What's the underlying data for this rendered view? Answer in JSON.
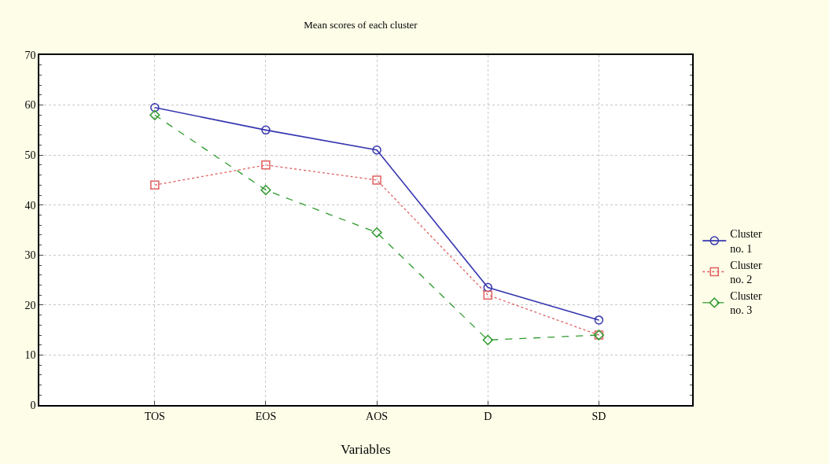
{
  "chart_data": {
    "type": "line",
    "title": "Mean scores of each cluster",
    "xlabel": "Variables",
    "categories": [
      "TOS",
      "EOS",
      "AOS",
      "D",
      "SD"
    ],
    "series": [
      {
        "name": "Cluster no. 1",
        "color": "#3636b0",
        "values": [
          59.5,
          55,
          51,
          23.5,
          17
        ],
        "marker": "circle",
        "line_style": "solid"
      },
      {
        "name": "Cluster no. 2",
        "color": "#e06060",
        "values": [
          44,
          48,
          45,
          22,
          14
        ],
        "marker": "square",
        "line_style": "dotted"
      },
      {
        "name": "Cluster no. 3",
        "color": "#2e9a2e",
        "values": [
          58,
          43,
          34.5,
          13,
          14
        ],
        "marker": "diamond",
        "line_style": "dashed"
      }
    ],
    "ylim": [
      0,
      70
    ],
    "yticks": [
      0,
      10,
      20,
      30,
      40,
      50,
      60,
      70
    ],
    "grid": true,
    "legend": "right"
  }
}
